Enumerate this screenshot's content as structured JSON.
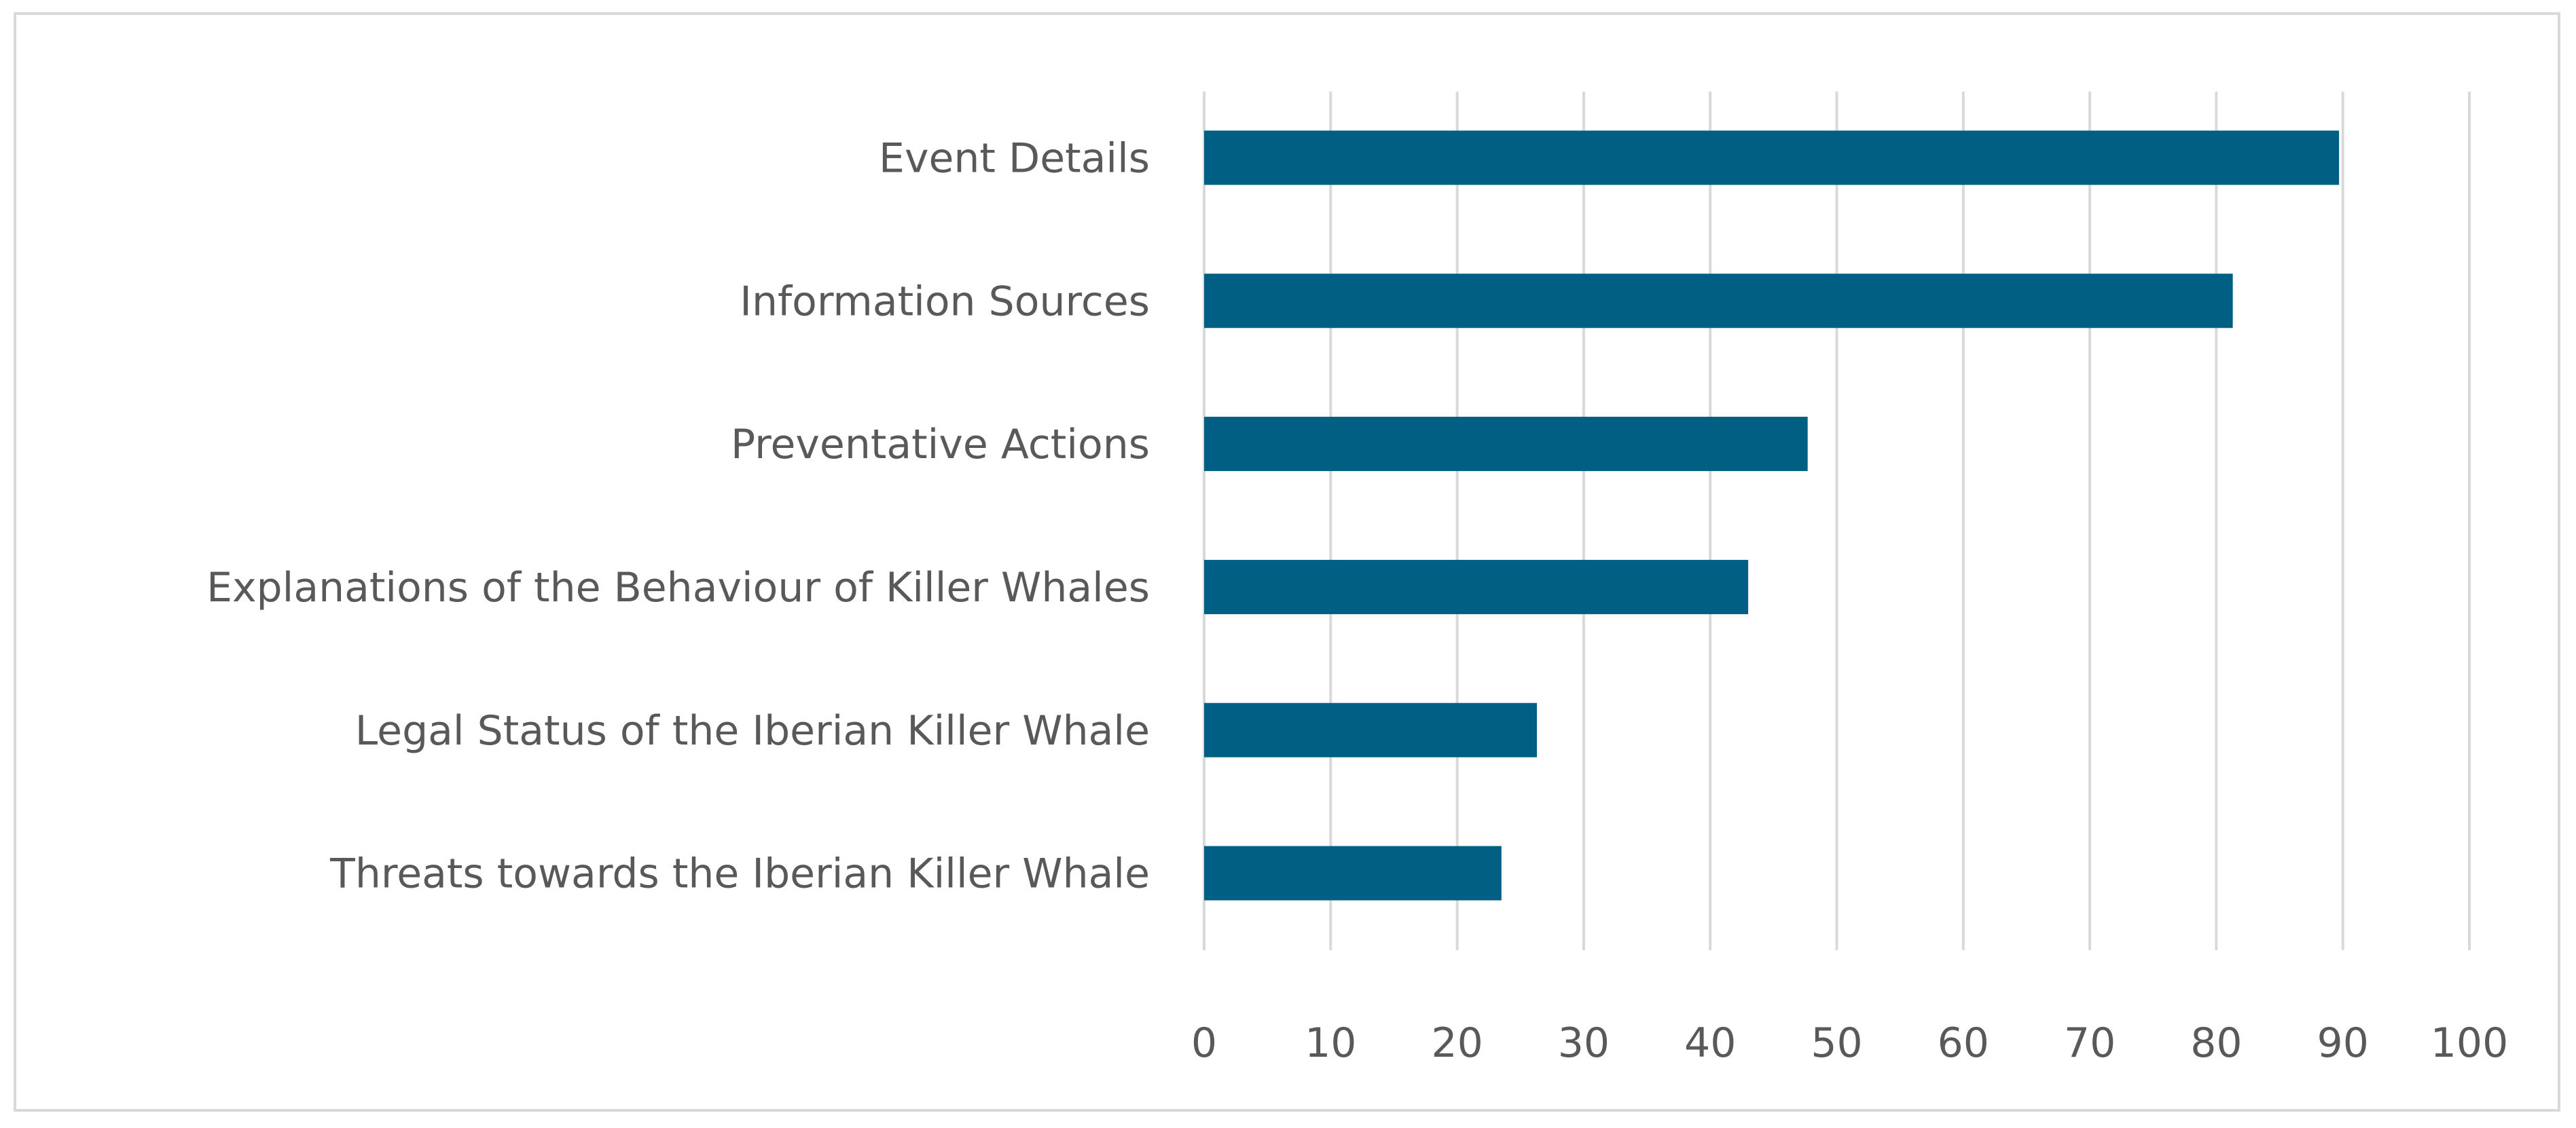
{
  "chart_data": {
    "type": "bar",
    "orientation": "horizontal",
    "title": "",
    "xlabel": "",
    "ylabel": "",
    "categories": [
      "Event Details",
      "Information Sources",
      "Preventative Actions",
      "Explanations of the Behaviour of Killer Whales",
      "Legal Status of the Iberian Killer Whale",
      "Threats towards the Iberian Killer Whale"
    ],
    "values": [
      89.7,
      81.3,
      47.7,
      43.0,
      26.3,
      23.5
    ],
    "xlim": [
      0,
      100
    ],
    "xticks": [
      "0",
      "10",
      "20",
      "30",
      "40",
      "50",
      "60",
      "70",
      "80",
      "90",
      "100"
    ],
    "grid": "vertical",
    "legend": "none",
    "bar_color": "#005f83"
  }
}
